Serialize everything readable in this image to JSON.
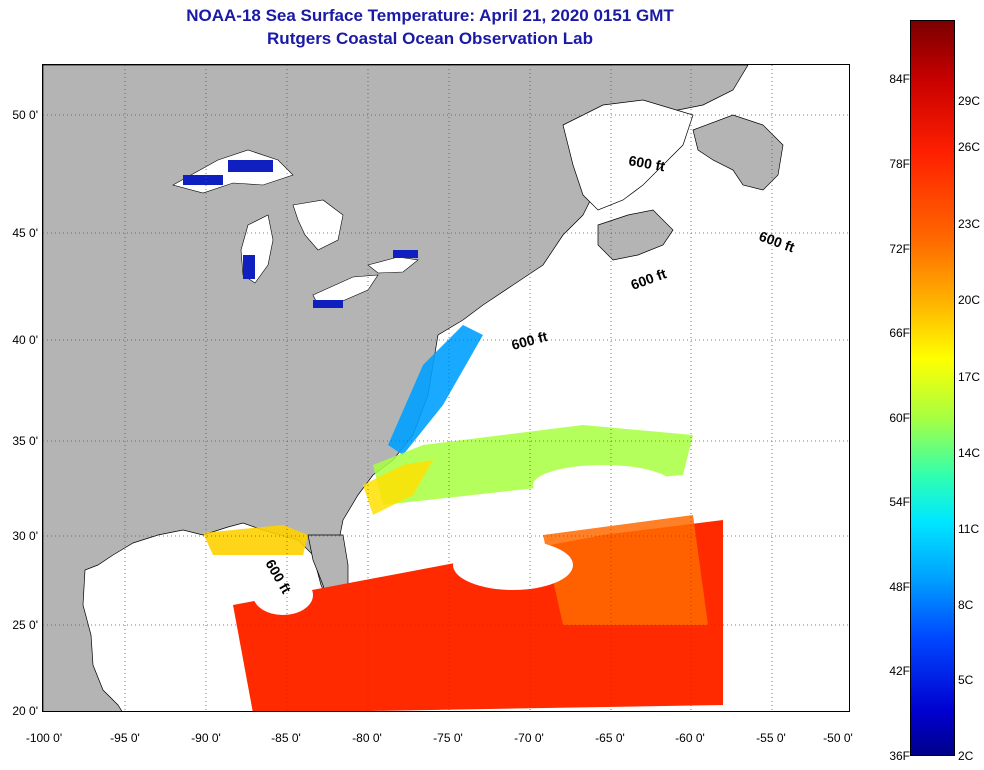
{
  "header": {
    "title_line1": "NOAA-18 Sea Surface Temperature:  April 21, 2020 0151 GMT",
    "title_line2": "Rutgers Coastal Ocean Observation Lab"
  },
  "axes": {
    "lat_labels": [
      "50 0'",
      "45 0'",
      "40 0'",
      "35 0'",
      "30 0'",
      "25 0'",
      "20 0'"
    ],
    "lon_labels": [
      "-100 0'",
      "-95 0'",
      "-90 0'",
      "-85 0'",
      "-80 0'",
      "-75 0'",
      "-70 0'",
      "-65 0'",
      "-60 0'",
      "-55 0'",
      "-50 0'"
    ]
  },
  "map": {
    "isobath_label": "600 ft",
    "colors": {
      "land": "#b4b4b4",
      "cloud": "#ffffff",
      "lake_cold": "#1020c0",
      "warm": "#ff2a00",
      "hot": "#ff6000"
    }
  },
  "colorbar": {
    "fahrenheit_labels": [
      "84F",
      "78F",
      "72F",
      "66F",
      "60F",
      "54F",
      "48F",
      "42F",
      "36F"
    ],
    "celsius_labels": [
      "29C",
      "26C",
      "23C",
      "20C",
      "17C",
      "14C",
      "11C",
      "8C",
      "5C",
      "2C"
    ]
  }
}
